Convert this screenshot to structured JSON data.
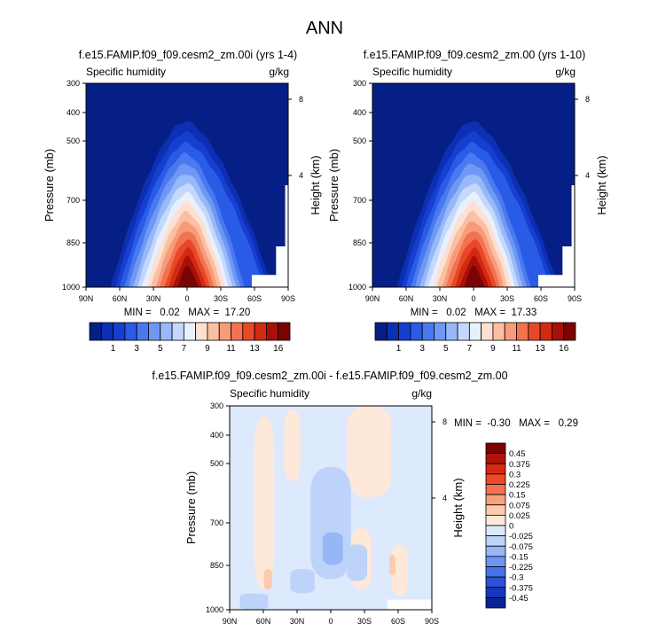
{
  "main_title": "ANN",
  "chart_data": [
    {
      "type": "heatmap",
      "title": "f.e15.FAMIP.f09_f09.cesm2_zm.00i (yrs 1-4)",
      "left_label": "Specific humidity",
      "right_label": "g/kg",
      "ylabel": "Pressure (mb)",
      "y2label": "Height (km)",
      "x_ticks": [
        "90N",
        "60N",
        "30N",
        "0",
        "30S",
        "60S",
        "90S"
      ],
      "y_ticks": [
        "300",
        "400",
        "500",
        "700",
        "850",
        "1000"
      ],
      "y2_ticks": [
        "8",
        "4"
      ],
      "min_max": "MIN =   0.02   MAX =  17.20",
      "stats": {
        "min": 0.02,
        "max": 17.2
      },
      "colorbar": {
        "orientation": "horizontal",
        "levels": [
          0.5,
          1,
          2,
          3,
          4,
          5,
          6,
          7,
          8,
          9,
          10,
          11,
          12,
          13,
          14,
          16
        ],
        "tick_labels": [
          "1",
          "3",
          "5",
          "7",
          "9",
          "11",
          "13",
          "16"
        ],
        "colors": [
          "#061f86",
          "#0c2fb4",
          "#163fd0",
          "#2a5be6",
          "#4a79ef",
          "#6f98f5",
          "#97b9f9",
          "#c4d8fc",
          "#e8f0fe",
          "#fde0d0",
          "#fbbfa3",
          "#f89b78",
          "#f2734f",
          "#e84828",
          "#d22a12",
          "#a81008",
          "#7a0404"
        ]
      }
    },
    {
      "type": "heatmap",
      "title": "f.e15.FAMIP.f09_f09.cesm2_zm.00 (yrs 1-10)",
      "left_label": "Specific humidity",
      "right_label": "g/kg",
      "ylabel": "Pressure (mb)",
      "y2label": "Height (km)",
      "x_ticks": [
        "90N",
        "60N",
        "30N",
        "0",
        "30S",
        "60S",
        "90S"
      ],
      "y_ticks": [
        "300",
        "400",
        "500",
        "700",
        "850",
        "1000"
      ],
      "y2_ticks": [
        "8",
        "4"
      ],
      "min_max": "MIN =   0.02   MAX =  17.33",
      "stats": {
        "min": 0.02,
        "max": 17.33
      },
      "colorbar": {
        "orientation": "horizontal",
        "levels": [
          0.5,
          1,
          2,
          3,
          4,
          5,
          6,
          7,
          8,
          9,
          10,
          11,
          12,
          13,
          14,
          16
        ],
        "tick_labels": [
          "1",
          "3",
          "5",
          "7",
          "9",
          "11",
          "13",
          "16"
        ],
        "colors": [
          "#061f86",
          "#0c2fb4",
          "#163fd0",
          "#2a5be6",
          "#4a79ef",
          "#6f98f5",
          "#97b9f9",
          "#c4d8fc",
          "#e8f0fe",
          "#fde0d0",
          "#fbbfa3",
          "#f89b78",
          "#f2734f",
          "#e84828",
          "#d22a12",
          "#a81008",
          "#7a0404"
        ]
      }
    },
    {
      "type": "heatmap",
      "title": "f.e15.FAMIP.f09_f09.cesm2_zm.00i - f.e15.FAMIP.f09_f09.cesm2_zm.00",
      "left_label": "Specific humidity",
      "right_label": "g/kg",
      "ylabel": "Pressure (mb)",
      "y2label": "Height (km)",
      "x_ticks": [
        "90N",
        "60N",
        "30N",
        "0",
        "30S",
        "60S",
        "90S"
      ],
      "y_ticks": [
        "300",
        "400",
        "500",
        "700",
        "850",
        "1000"
      ],
      "y2_ticks": [
        "8",
        "4"
      ],
      "min_max": "MIN =  -0.30   MAX =   0.29",
      "stats": {
        "min": -0.3,
        "max": 0.29
      },
      "colorbar": {
        "orientation": "vertical",
        "tick_labels": [
          "0.45",
          "0.375",
          "0.3",
          "0.225",
          "0.15",
          "0.075",
          "0.025",
          "0",
          "-0.025",
          "-0.075",
          "-0.15",
          "-0.225",
          "-0.3",
          "-0.375",
          "-0.45"
        ],
        "colors": [
          "#7a0404",
          "#b01408",
          "#d62a12",
          "#ec4a26",
          "#f5724c",
          "#f9a07c",
          "#fccaae",
          "#fde8da",
          "#dde9fc",
          "#bdd3fa",
          "#97b6f6",
          "#6e94f0",
          "#4a72e8",
          "#2c52d8",
          "#1638be",
          "#0a2494"
        ]
      }
    }
  ]
}
